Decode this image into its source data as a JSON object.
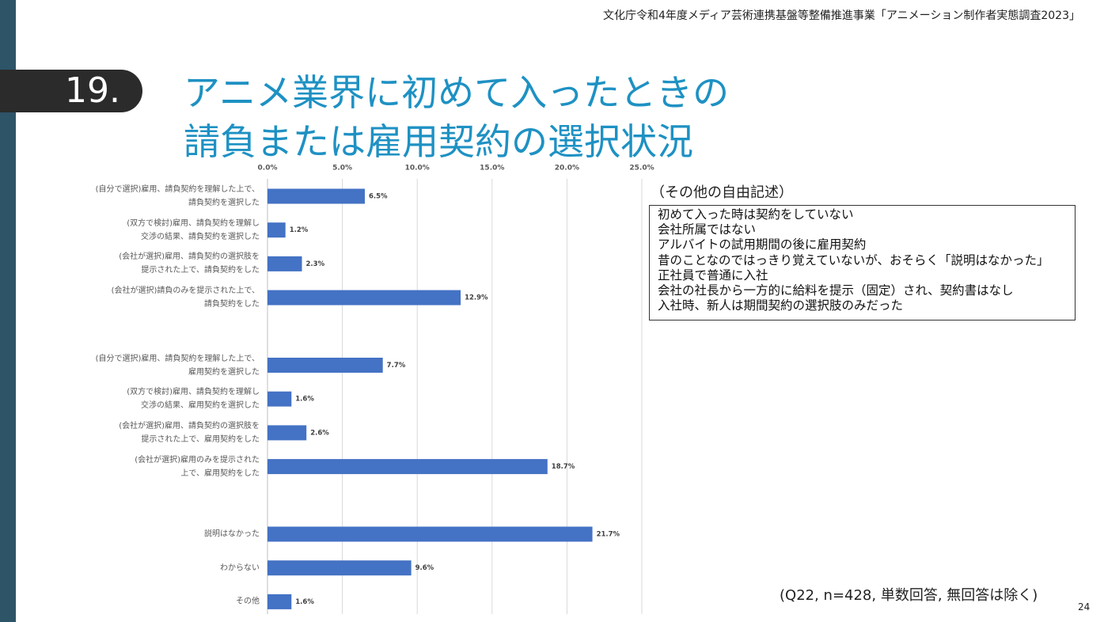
{
  "header": "文化庁令和4年度メディア芸術連携基盤等整備推進事業「アニメーション制作者実態調査2023」",
  "section_number": "19.",
  "title": "アニメ業界に初めて入ったときの\n請負または雇用契約の選択状況",
  "side_note": {
    "heading": "（その他の自由記述）",
    "lines": [
      "初めて入った時は契約をしていない",
      "会社所属ではない",
      "アルバイトの試用期間の後に雇用契約",
      "昔のことなのではっきり覚えていないが、おそらく「説明はなかった」",
      "正社員で普通に入社",
      "会社の社長から一方的に給料を提示（固定）され、契約書はなし",
      "入社時、新人は期間契約の選択肢のみだった"
    ]
  },
  "footnote": "(Q22, n=428, 単数回答, 無回答は除く)",
  "page_number": "24",
  "chart_data": {
    "type": "bar",
    "orientation": "horizontal",
    "color": "#4472c4",
    "grid": true,
    "categories": [
      "(自分で選択)雇用、請負契約を理解した上で、\n請負契約を選択した",
      "(双方で検討)雇用、請負契約を理解し\n交渉の結果、請負契約を選択した",
      "(会社が選択)雇用、請負契約の選択肢を\n提示された上で、請負契約をした",
      "(会社が選択)請負のみを提示された上で、\n請負契約をした",
      null,
      "(自分で選択)雇用、請負契約を理解した上で、\n雇用契約を選択した",
      "(双方で検討)雇用、請負契約を理解し\n交渉の結果、雇用契約を選択した",
      "(会社が選択)雇用、請負契約の選択肢を\n提示された上で、雇用契約をした",
      "(会社が選択)雇用のみを提示された\n上で、雇用契約をした",
      null,
      "説明はなかった",
      "わからない",
      "その他"
    ],
    "values": [
      6.5,
      1.2,
      2.3,
      12.9,
      null,
      7.7,
      1.6,
      2.6,
      18.7,
      null,
      21.7,
      9.6,
      1.6
    ],
    "value_labels": [
      "6.5%",
      "1.2%",
      "2.3%",
      "12.9%",
      null,
      "7.7%",
      "1.6%",
      "2.6%",
      "18.7%",
      null,
      "21.7%",
      "9.6%",
      "1.6%"
    ],
    "xlim": [
      0,
      25
    ],
    "xticks": [
      {
        "value": 0,
        "label": "0.0%"
      },
      {
        "value": 5,
        "label": "5.0%"
      },
      {
        "value": 10,
        "label": "10.0%"
      },
      {
        "value": 15,
        "label": "15.0%"
      },
      {
        "value": 20,
        "label": "20.0%"
      },
      {
        "value": 25,
        "label": "25.0%"
      }
    ]
  }
}
